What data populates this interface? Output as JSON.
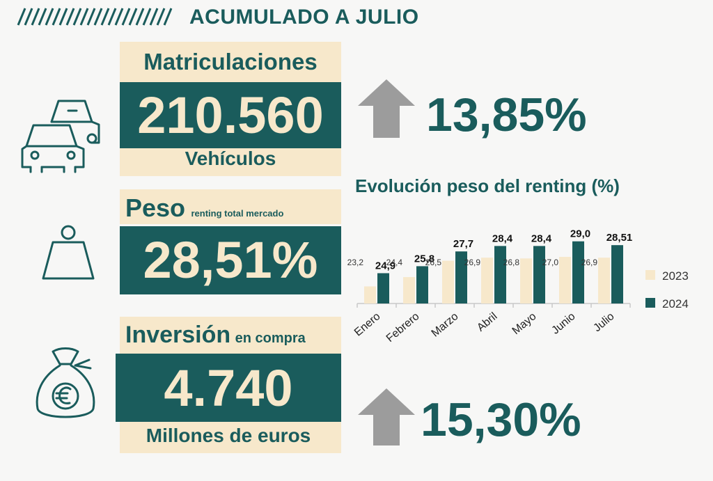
{
  "header": {
    "title": "ACUMULADO A JULIO"
  },
  "matriculaciones": {
    "title": "Matriculaciones",
    "value": "210.560",
    "unit": "Vehículos",
    "change": "13,85%",
    "icon": "cars-icon"
  },
  "peso": {
    "title": "Peso",
    "subtitle": "renting total mercado",
    "value": "28,51%",
    "icon": "weight-icon"
  },
  "inversion": {
    "title": "Inversión",
    "subtitle": "en compra",
    "value": "4.740",
    "unit": "Millones de euros",
    "change": "15,30%",
    "icon": "euro-bag-icon"
  },
  "colors": {
    "teal": "#1a5c5c",
    "beige": "#f7e8cb",
    "arrow": "#9c9c9c"
  },
  "chart_data": {
    "type": "bar",
    "title": "Evolución peso del renting (%)",
    "categories": [
      "Enero",
      "Febrero",
      "Marzo",
      "Abril",
      "Mayo",
      "Junio",
      "Julio"
    ],
    "series": [
      {
        "name": "2023",
        "values": [
          23.2,
          24.4,
          26.5,
          26.9,
          26.8,
          27.0,
          26.9
        ],
        "labels": [
          "23,2",
          "24,4",
          "26,5",
          "26,9",
          "26,8",
          "27,0",
          "26,9"
        ],
        "color": "#f7e8cb"
      },
      {
        "name": "2024",
        "values": [
          24.9,
          25.8,
          27.7,
          28.4,
          28.4,
          29.0,
          28.51
        ],
        "labels": [
          "24,9",
          "25,8",
          "27,7",
          "28,4",
          "28,4",
          "29,0",
          "28,51"
        ],
        "color": "#1a5c5c"
      }
    ],
    "legend": "right",
    "grid": false
  }
}
